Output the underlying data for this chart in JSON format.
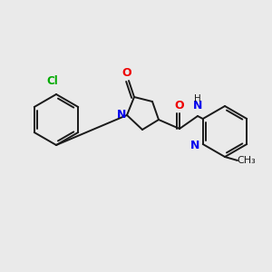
{
  "background_color": "#eaeaea",
  "bond_color": "#1a1a1a",
  "atom_colors": {
    "N": "#0000ee",
    "O": "#ee0000",
    "Cl": "#00aa00",
    "C": "#1a1a1a",
    "H": "#1a1a1a"
  },
  "figsize": [
    3.0,
    3.0
  ],
  "dpi": 100
}
